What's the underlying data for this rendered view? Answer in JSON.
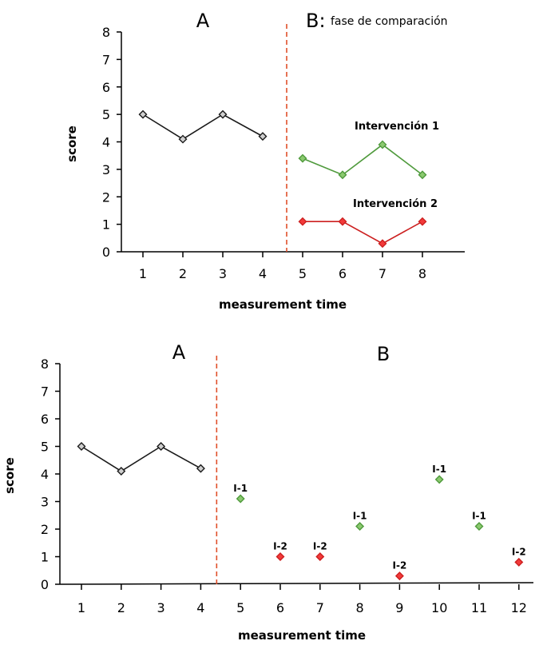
{
  "colors": {
    "black": "#1a1a1a",
    "green": "#4f9a3c",
    "red": "#cc1f1f",
    "divider": "#e0502a"
  },
  "chart_data": [
    {
      "type": "line",
      "xlabel": "measurement time",
      "ylabel": "score",
      "ylim": [
        0,
        8
      ],
      "xticks": [
        1,
        2,
        3,
        4,
        5,
        6,
        7,
        8
      ],
      "yticks": [
        0,
        1,
        2,
        3,
        4,
        5,
        6,
        7,
        8
      ],
      "phase_labels": {
        "a": "A",
        "b": "B:",
        "b_note": "fase de comparación"
      },
      "phase_change_x": 4.6,
      "series": [
        {
          "name": "",
          "color": "black",
          "x": [
            1,
            2,
            3,
            4
          ],
          "y": [
            5.0,
            4.1,
            5.0,
            4.2
          ]
        },
        {
          "name": "Intervención 1",
          "color": "green",
          "x": [
            5,
            6,
            7,
            8
          ],
          "y": [
            3.4,
            2.8,
            3.9,
            2.8
          ]
        },
        {
          "name": "Intervención 2",
          "color": "red",
          "x": [
            5,
            6,
            7,
            8
          ],
          "y": [
            1.1,
            1.1,
            0.3,
            1.1
          ]
        }
      ]
    },
    {
      "type": "scatter",
      "xlabel": "measurement time",
      "ylabel": "score",
      "ylim": [
        0,
        8
      ],
      "xticks": [
        1,
        2,
        3,
        4,
        5,
        6,
        7,
        8,
        9,
        10,
        11,
        12
      ],
      "yticks": [
        0,
        1,
        2,
        3,
        4,
        5,
        6,
        7,
        8
      ],
      "phase_labels": {
        "a": "A",
        "b": "B"
      },
      "phase_change_x": 4.4,
      "baseline": {
        "color": "black",
        "x": [
          1,
          2,
          3,
          4
        ],
        "y": [
          5.0,
          4.1,
          5.0,
          4.2
        ]
      },
      "points": [
        {
          "x": 5,
          "y": 3.1,
          "label": "I-1",
          "color": "green"
        },
        {
          "x": 6,
          "y": 1.0,
          "label": "I-2",
          "color": "red"
        },
        {
          "x": 7,
          "y": 1.0,
          "label": "I-2",
          "color": "red"
        },
        {
          "x": 8,
          "y": 2.1,
          "label": "I-1",
          "color": "green"
        },
        {
          "x": 9,
          "y": 0.3,
          "label": "I-2",
          "color": "red"
        },
        {
          "x": 10,
          "y": 3.8,
          "label": "I-1",
          "color": "green"
        },
        {
          "x": 11,
          "y": 2.1,
          "label": "I-1",
          "color": "green"
        },
        {
          "x": 12,
          "y": 0.8,
          "label": "I-2",
          "color": "red"
        }
      ]
    }
  ]
}
